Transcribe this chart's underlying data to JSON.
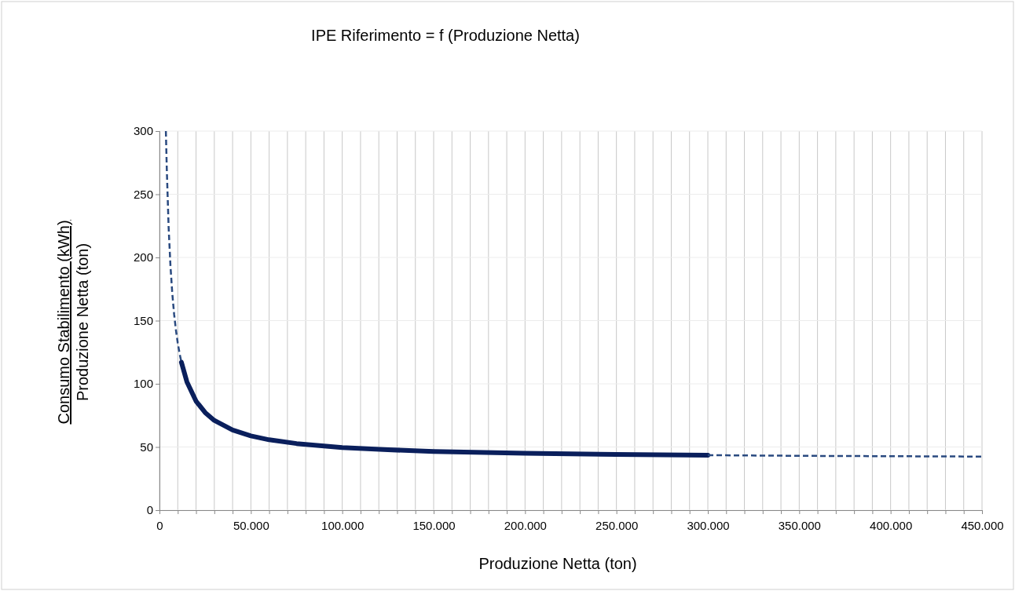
{
  "chart_data": {
    "type": "line",
    "title": "IPE Riferimento = f (Produzione Netta)",
    "xlabel": "Produzione Netta (ton)",
    "ylabel": [
      "Consumo Stabilimento  (kWh)",
      "Produzione Netta (ton)"
    ],
    "xlim": [
      0,
      450000
    ],
    "ylim": [
      0,
      300
    ],
    "xticks": [
      0,
      {
        "value": 10000,
        "label": null
      },
      {
        "value": 20000,
        "label": null
      },
      {
        "value": 30000,
        "label": null
      },
      {
        "value": 40000,
        "label": null
      },
      {
        "value": 50000,
        "label": "50.000"
      },
      {
        "value": 60000,
        "label": null
      },
      {
        "value": 70000,
        "label": null
      },
      {
        "value": 80000,
        "label": null
      },
      {
        "value": 90000,
        "label": null
      },
      {
        "value": 100000,
        "label": "100.000"
      },
      {
        "value": 110000,
        "label": null
      },
      {
        "value": 120000,
        "label": null
      },
      {
        "value": 130000,
        "label": null
      },
      {
        "value": 140000,
        "label": null
      },
      {
        "value": 150000,
        "label": "150.000"
      },
      {
        "value": 160000,
        "label": null
      },
      {
        "value": 170000,
        "label": null
      },
      {
        "value": 180000,
        "label": null
      },
      {
        "value": 190000,
        "label": null
      },
      {
        "value": 200000,
        "label": "200.000"
      },
      {
        "value": 210000,
        "label": null
      },
      {
        "value": 220000,
        "label": null
      },
      {
        "value": 230000,
        "label": null
      },
      {
        "value": 240000,
        "label": null
      },
      {
        "value": 250000,
        "label": "250.000"
      },
      {
        "value": 260000,
        "label": null
      },
      {
        "value": 270000,
        "label": null
      },
      {
        "value": 280000,
        "label": null
      },
      {
        "value": 290000,
        "label": null
      },
      {
        "value": 300000,
        "label": "300.000"
      },
      {
        "value": 310000,
        "label": null
      },
      {
        "value": 320000,
        "label": null
      },
      {
        "value": 330000,
        "label": null
      },
      {
        "value": 340000,
        "label": null
      },
      {
        "value": 350000,
        "label": "350.000"
      },
      {
        "value": 360000,
        "label": null
      },
      {
        "value": 370000,
        "label": null
      },
      {
        "value": 380000,
        "label": null
      },
      {
        "value": 390000,
        "label": null
      },
      {
        "value": 400000,
        "label": "400.000"
      },
      {
        "value": 410000,
        "label": null
      },
      {
        "value": 420000,
        "label": null
      },
      {
        "value": 430000,
        "label": null
      },
      {
        "value": 440000,
        "label": null
      },
      {
        "value": 450000,
        "label": "450.000"
      }
    ],
    "yticks": [
      0,
      50,
      100,
      150,
      200,
      250,
      300
    ],
    "grid": true,
    "marker": "none",
    "series": [
      {
        "color": "#2a4a80",
        "line_style": "dashed",
        "x": [
          3500,
          4000,
          5000,
          6000,
          7000,
          8000,
          9000,
          10000,
          11000,
          12000
        ],
        "values": [
          300,
          270,
          224,
          193.5,
          171.7,
          155.2,
          142.5,
          132.3,
          124,
          117
        ]
      },
      {
        "color": "#0a1f5c",
        "line_style": "solid",
        "x": [
          12000,
          15000,
          20000,
          25000,
          30000,
          40000,
          50000,
          60000,
          75000,
          100000,
          125000,
          150000,
          200000,
          250000,
          300000
        ],
        "values": [
          117,
          101.6,
          86.3,
          77.2,
          71,
          63.4,
          58.8,
          55.7,
          52.7,
          49.6,
          47.8,
          46.5,
          45,
          44.1,
          43.5
        ]
      },
      {
        "color": "#2a4a80",
        "line_style": "dashed",
        "x": [
          300000,
          350000,
          400000,
          450000
        ],
        "values": [
          43.5,
          43,
          42.7,
          42.4
        ]
      }
    ]
  }
}
